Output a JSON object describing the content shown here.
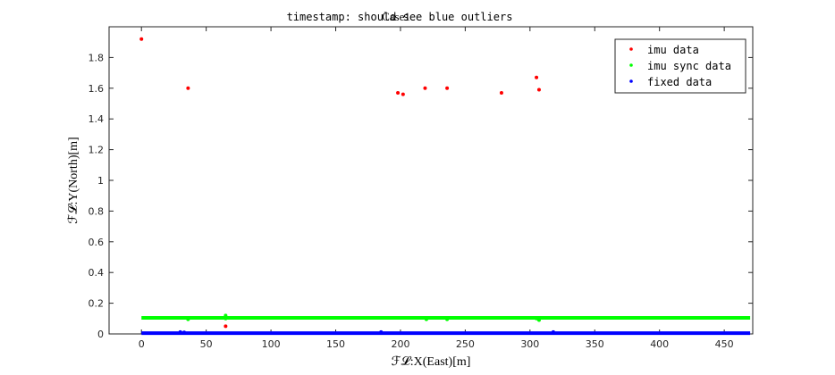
{
  "chart_data": {
    "type": "scatter",
    "title": "timestamp: should see blue outliers",
    "title_overlay": "Case1",
    "xlabel": "ℱ𝓛:X(East)[m]",
    "ylabel": "ℱ𝓛:Y(North)[m]",
    "xlim": [
      -25,
      472
    ],
    "ylim": [
      0,
      2
    ],
    "xticks": [
      0,
      50,
      100,
      150,
      200,
      250,
      300,
      350,
      400,
      450
    ],
    "yticks": [
      0,
      0.2,
      0.4,
      0.6,
      0.8,
      1,
      1.2,
      1.4,
      1.6,
      1.8
    ],
    "ytick_labels": [
      "0",
      "0.2",
      "0.4",
      "0.6",
      "0.8",
      "1",
      "1.2",
      "1.4",
      "1.6",
      "1.8"
    ],
    "xtick_labels": [
      "0",
      "50",
      "100",
      "150",
      "200",
      "250",
      "300",
      "350",
      "400",
      "450"
    ],
    "legend_position": "top-right",
    "series": [
      {
        "name": "imu data",
        "color": "#ff0000",
        "points": [
          [
            0,
            1.92
          ],
          [
            36,
            1.6
          ],
          [
            65,
            0.05
          ],
          [
            198,
            1.57
          ],
          [
            202,
            1.56
          ],
          [
            219,
            1.6
          ],
          [
            236,
            1.6
          ],
          [
            278,
            1.57
          ],
          [
            305,
            1.67
          ],
          [
            307,
            1.59
          ]
        ]
      },
      {
        "name": "imu sync data",
        "color": "#00ff00",
        "line": {
          "x_start": 0,
          "x_end": 470,
          "y": 0.105
        },
        "points": [
          [
            36,
            0.095
          ],
          [
            65,
            0.12
          ],
          [
            65,
            0.1
          ],
          [
            220,
            0.095
          ],
          [
            236,
            0.095
          ],
          [
            307,
            0.09
          ],
          [
            305,
            0.1
          ]
        ]
      },
      {
        "name": "fixed data",
        "color": "#0000ff",
        "line": {
          "x_start": 0,
          "x_end": 470,
          "y": 0.005
        },
        "points": [
          [
            30,
            0.012
          ],
          [
            33,
            0.01
          ],
          [
            185,
            0.012
          ],
          [
            318,
            0.012
          ]
        ]
      }
    ]
  }
}
